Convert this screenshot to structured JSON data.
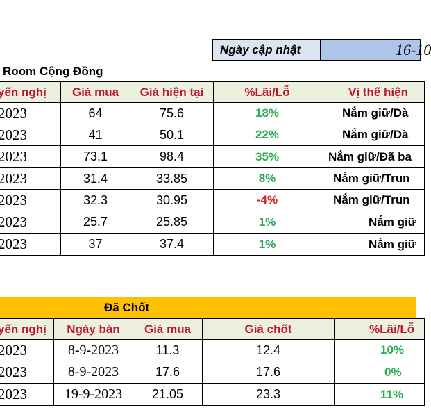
{
  "update_label": "Ngày cập nhật",
  "update_value": "16-10",
  "community": {
    "title": "Room Cộng Đồng",
    "headers": [
      "yến nghị",
      "Giá mua",
      "Giá hiện tại",
      "%Lãi/Lỗ",
      "Vị thế hiện"
    ],
    "rows": [
      {
        "date": "2023",
        "buy": "64",
        "current": "75.6",
        "pct": "18%",
        "status": "Nắm giữ/Dà"
      },
      {
        "date": "2023",
        "buy": "41",
        "current": "50.1",
        "pct": "22%",
        "status": "Nắm giữ/Dà"
      },
      {
        "date": "2023",
        "buy": "73.1",
        "current": "98.4",
        "pct": "35%",
        "status": "Nắm giữ/Đã ba"
      },
      {
        "date": "2023",
        "buy": "31.4",
        "current": "33.85",
        "pct": "8%",
        "status": "Nắm giữ/Trun"
      },
      {
        "date": "2023",
        "buy": "32.3",
        "current": "30.95",
        "pct": "-4%",
        "status": "Nắm giữ/Trun"
      },
      {
        "date": "2023",
        "buy": "25.7",
        "current": "25.85",
        "pct": "1%",
        "status": "Nắm giữ"
      },
      {
        "date": "2023",
        "buy": "37",
        "current": "37.4",
        "pct": "1%",
        "status": "Nắm giữ"
      }
    ]
  },
  "closed": {
    "title": "Đã Chốt",
    "headers": [
      "yến nghị",
      "Ngày bán",
      "Giá mua",
      "Giá chốt",
      "%Lãi/Lỗ"
    ],
    "rows": [
      {
        "date": "2023",
        "sell_date": "8-9-2023",
        "buy": "11.3",
        "close": "12.4",
        "pct": "10%"
      },
      {
        "date": "2023",
        "sell_date": "8-9-2023",
        "buy": "17.6",
        "close": "17.6",
        "pct": "0%"
      },
      {
        "date": "2023",
        "sell_date": "19-9-2023",
        "buy": "21.05",
        "close": "23.3",
        "pct": "11%"
      }
    ]
  },
  "colors": {
    "header_bg": "#ebf1de",
    "header_text": "#c0162b",
    "positive": "#2eaa53",
    "negative": "#d42020",
    "closed_bar": "#ffc000",
    "date_bg": "#aec6ea"
  }
}
